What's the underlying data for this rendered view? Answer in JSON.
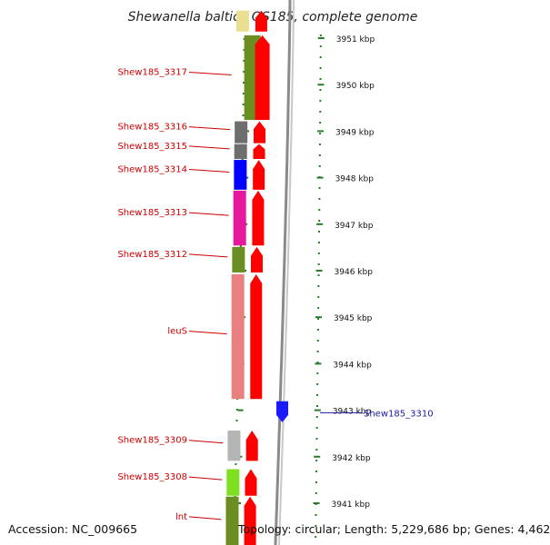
{
  "title": "Shewanella baltica OS185, complete genome",
  "accession": "Accession: NC_009665",
  "topology": "Topology: circular; Length: 5,229,686 bp; Genes: 4,462",
  "colors": {
    "forward_cds": "#ff0000",
    "reverse_cds": "#1a1aff",
    "label_red": "#cc0000",
    "label_blue": "#1a1aaa",
    "tick": "#2a7a2a"
  },
  "scale_ticks": [
    {
      "kbp": 3951,
      "label": "3951 kbp"
    },
    {
      "kbp": 3950,
      "label": "3950 kbp"
    },
    {
      "kbp": 3949,
      "label": "3949 kbp"
    },
    {
      "kbp": 3948,
      "label": "3948 kbp"
    },
    {
      "kbp": 3947,
      "label": "3947 kbp"
    },
    {
      "kbp": 3946,
      "label": "3946 kbp"
    },
    {
      "kbp": 3945,
      "label": "3945 kbp"
    },
    {
      "kbp": 3944,
      "label": "3944 kbp"
    },
    {
      "kbp": 3943,
      "label": "3943 kbp"
    },
    {
      "kbp": 3942,
      "label": "3942 kbp"
    },
    {
      "kbp": 3941,
      "label": "3941 kbp"
    }
  ],
  "genes": [
    {
      "name": "",
      "strand": "+",
      "start_kbp": 3951.65,
      "end_kbp": 3951.2,
      "cog_color": "#e8e090"
    },
    {
      "name": "Shew185_3317",
      "strand": "+",
      "start_kbp": 3951.12,
      "end_kbp": 3949.3,
      "cog_color": "#6b8e23"
    },
    {
      "name": "Shew185_3316",
      "strand": "+",
      "start_kbp": 3949.27,
      "end_kbp": 3948.8,
      "cog_color": "#6e6e6e"
    },
    {
      "name": "Shew185_3315",
      "strand": "+",
      "start_kbp": 3948.78,
      "end_kbp": 3948.46,
      "cog_color": "#6e6e6e"
    },
    {
      "name": "Shew185_3314",
      "strand": "+",
      "start_kbp": 3948.44,
      "end_kbp": 3947.8,
      "cog_color": "#0000ff"
    },
    {
      "name": "Shew185_3313",
      "strand": "+",
      "start_kbp": 3947.78,
      "end_kbp": 3946.6,
      "cog_color": "#e6199e"
    },
    {
      "name": "Shew185_3312",
      "strand": "+",
      "start_kbp": 3946.57,
      "end_kbp": 3946.02,
      "cog_color": "#6b8e23"
    },
    {
      "name": "leuS",
      "strand": "+",
      "start_kbp": 3945.98,
      "end_kbp": 3943.3,
      "cog_color": "#e88080"
    },
    {
      "name": "Shew185_3310",
      "strand": "-",
      "start_kbp": 3943.25,
      "end_kbp": 3942.8,
      "cog_color": ""
    },
    {
      "name": "Shew185_3309",
      "strand": "+",
      "start_kbp": 3942.62,
      "end_kbp": 3941.97,
      "cog_color": "#b5b5b5"
    },
    {
      "name": "Shew185_3308",
      "strand": "+",
      "start_kbp": 3941.79,
      "end_kbp": 3941.22,
      "cog_color": "#7fe022"
    },
    {
      "name": "lnt",
      "strand": "+",
      "start_kbp": 3941.2,
      "end_kbp": 3940.1,
      "cog_color": "#6b8e23"
    }
  ]
}
